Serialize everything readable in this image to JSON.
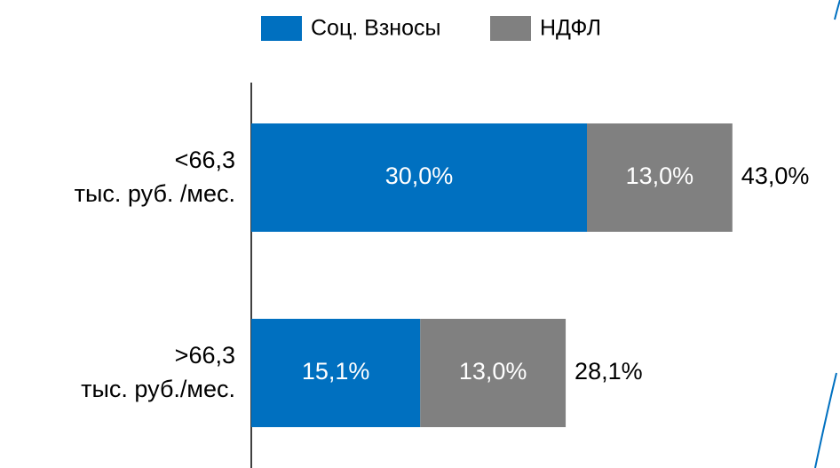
{
  "chart_data": {
    "type": "stacked-bar-horizontal",
    "categories": [
      [
        "<66,3",
        "тыс. руб. /мес."
      ],
      [
        ">66,3",
        "тыс. руб./мес."
      ]
    ],
    "series": [
      {
        "name": "Соц. Взносы",
        "color": "#0070c0",
        "values": [
          30.0,
          15.1
        ],
        "value_labels": [
          "30,0%",
          "15,1%"
        ]
      },
      {
        "name": "НДФЛ",
        "color": "#808080",
        "values": [
          13.0,
          13.0
        ],
        "value_labels": [
          "13,0%",
          "13,0%"
        ]
      }
    ],
    "totals": [
      43.0,
      28.1
    ],
    "total_labels": [
      "43,0%",
      "28,1%"
    ],
    "xlim": [
      0,
      50
    ],
    "legend": "top"
  }
}
